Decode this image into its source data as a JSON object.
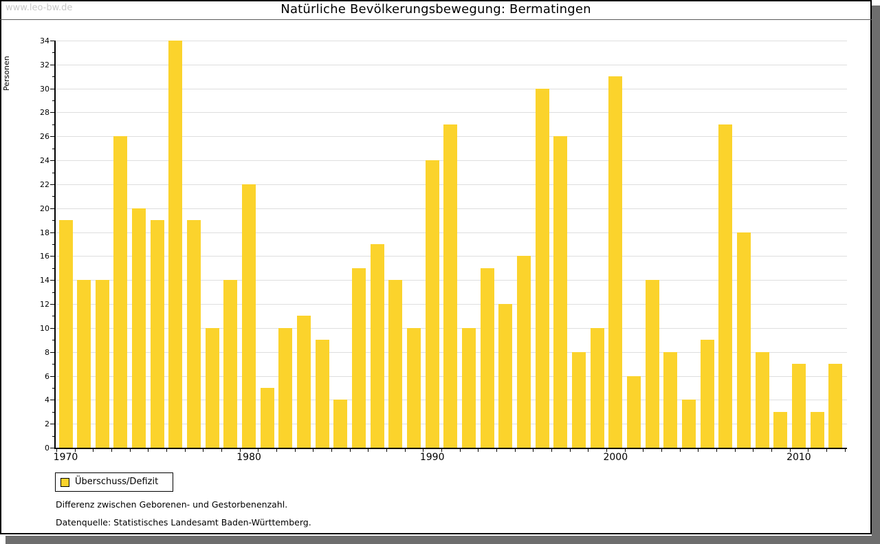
{
  "watermark": "www.leo-bw.de",
  "title": "Natürliche Bevölkerungsbewegung: Bermatingen",
  "legend": {
    "label": "Überschuss/Defizit"
  },
  "footnotes": {
    "line1": "Differenz zwischen Geborenen- und Gestorbenenzahl.",
    "line2": "Datenquelle: Statistisches Landesamt Baden-Württemberg."
  },
  "colors": {
    "bar": "#fbd32c",
    "grid": "#dedede",
    "axis": "#000000",
    "watermark": "#c8c8c8",
    "frame_shadow": "#6e6e6e"
  },
  "chart_data": {
    "type": "bar",
    "title": "Natürliche Bevölkerungsbewegung: Bermatingen",
    "ylabel": "Personen",
    "xlabel": "",
    "ylim": [
      0,
      34
    ],
    "ytick_step": 2,
    "grid": true,
    "legend_position": "bottom-left",
    "series_name": "Überschuss/Defizit",
    "categories": [
      1970,
      1971,
      1972,
      1973,
      1974,
      1975,
      1976,
      1977,
      1978,
      1979,
      1980,
      1981,
      1982,
      1983,
      1984,
      1985,
      1986,
      1987,
      1988,
      1989,
      1990,
      1991,
      1992,
      1993,
      1994,
      1995,
      1996,
      1997,
      1998,
      1999,
      2000,
      2001,
      2002,
      2003,
      2004,
      2005,
      2006,
      2007,
      2008,
      2009,
      2010,
      2011,
      2012
    ],
    "values": [
      19,
      14,
      14,
      26,
      20,
      19,
      34,
      19,
      10,
      14,
      22,
      5,
      10,
      11,
      9,
      4,
      15,
      17,
      14,
      10,
      24,
      27,
      10,
      15,
      12,
      16,
      30,
      26,
      8,
      10,
      31,
      6,
      14,
      8,
      4,
      9,
      27,
      18,
      8,
      3,
      7,
      3,
      7
    ],
    "xticks": [
      1970,
      1980,
      1990,
      2000,
      2010
    ]
  }
}
